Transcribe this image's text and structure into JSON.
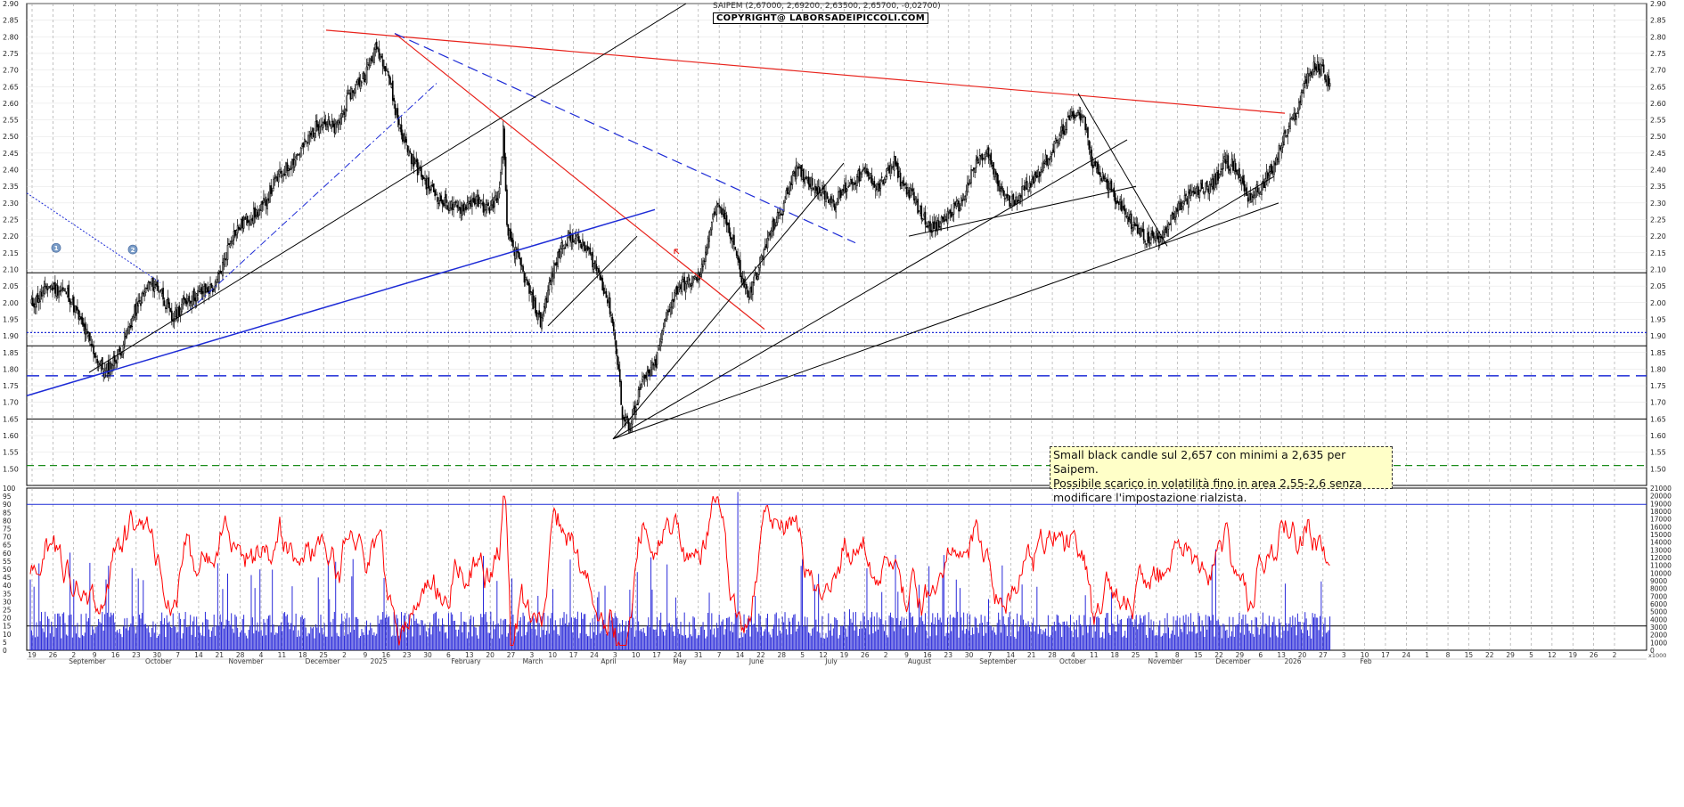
{
  "header": {
    "title": "SAIPEM (2,67000, 2,69200, 2,63500, 2,65700, -0,02700)",
    "copyright": "COPYRIGHT@ LABORSADEIPICCOLI.COM"
  },
  "annotation": {
    "line1": "Small black candle sul 2,657 con minimi a 2,635 per Saipem.",
    "line2": "Possibile scarico in volatilità fino in area 2,55-2,6 senza",
    "line3": "modificare l'impostazione rialzista."
  },
  "markers": [
    "1",
    "2"
  ],
  "colors": {
    "price": "#000000",
    "trend_red": "#e8231c",
    "trend_blue": "#1d2bd6",
    "osc": "#ff0000",
    "volume": "#2a2ad9",
    "grid": "#9a9a9a",
    "support_green": "#1a8c1a"
  },
  "chart_data": [
    {
      "type": "candlestick",
      "title": "SAIPEM",
      "ylim": [
        1.45,
        2.9
      ],
      "y_ticks": [
        "2.90",
        "2.85",
        "2.80",
        "2.75",
        "2.70",
        "2.65",
        "2.60",
        "2.55",
        "2.50",
        "2.45",
        "2.40",
        "2.35",
        "2.30",
        "2.25",
        "2.20",
        "2.15",
        "2.10",
        "2.05",
        "2.00",
        "1.95",
        "1.90",
        "1.85",
        "1.80",
        "1.75",
        "1.70",
        "1.65",
        "1.60",
        "1.55",
        "1.50"
      ],
      "horizontal_levels": [
        2.09,
        1.91,
        1.87,
        1.78,
        1.65,
        1.51
      ],
      "close_path": [
        [
          0,
          1.99
        ],
        [
          5,
          2.05
        ],
        [
          10,
          2.03
        ],
        [
          14,
          1.93
        ],
        [
          18,
          1.83
        ],
        [
          20,
          1.79
        ],
        [
          24,
          1.85
        ],
        [
          28,
          1.97
        ],
        [
          32,
          2.06
        ],
        [
          35,
          2.04
        ],
        [
          38,
          1.95
        ],
        [
          42,
          2.01
        ],
        [
          46,
          2.03
        ],
        [
          50,
          2.05
        ],
        [
          54,
          2.2
        ],
        [
          58,
          2.25
        ],
        [
          62,
          2.28
        ],
        [
          66,
          2.37
        ],
        [
          70,
          2.42
        ],
        [
          74,
          2.48
        ],
        [
          78,
          2.55
        ],
        [
          82,
          2.52
        ],
        [
          86,
          2.63
        ],
        [
          90,
          2.69
        ],
        [
          93,
          2.77
        ],
        [
          96,
          2.7
        ],
        [
          98,
          2.58
        ],
        [
          100,
          2.5
        ],
        [
          103,
          2.42
        ],
        [
          107,
          2.35
        ],
        [
          111,
          2.3
        ],
        [
          115,
          2.28
        ],
        [
          119,
          2.31
        ],
        [
          123,
          2.28
        ],
        [
          126,
          2.33
        ],
        [
          127,
          2.52
        ],
        [
          128,
          2.22
        ],
        [
          132,
          2.1
        ],
        [
          135,
          2.0
        ],
        [
          137,
          1.94
        ],
        [
          140,
          2.08
        ],
        [
          143,
          2.18
        ],
        [
          146,
          2.2
        ],
        [
          150,
          2.15
        ],
        [
          153,
          2.08
        ],
        [
          156,
          1.97
        ],
        [
          158,
          1.8
        ],
        [
          159,
          1.65
        ],
        [
          161,
          1.63
        ],
        [
          164,
          1.75
        ],
        [
          168,
          1.82
        ],
        [
          171,
          1.97
        ],
        [
          174,
          2.05
        ],
        [
          177,
          2.06
        ],
        [
          180,
          2.08
        ],
        [
          182,
          2.2
        ],
        [
          184,
          2.28
        ],
        [
          186,
          2.27
        ],
        [
          189,
          2.18
        ],
        [
          191,
          2.07
        ],
        [
          193,
          2.02
        ],
        [
          196,
          2.12
        ],
        [
          199,
          2.22
        ],
        [
          202,
          2.28
        ],
        [
          205,
          2.4
        ],
        [
          208,
          2.38
        ],
        [
          212,
          2.34
        ],
        [
          216,
          2.3
        ],
        [
          220,
          2.36
        ],
        [
          224,
          2.39
        ],
        [
          228,
          2.35
        ],
        [
          232,
          2.42
        ],
        [
          234,
          2.36
        ],
        [
          237,
          2.32
        ],
        [
          240,
          2.25
        ],
        [
          243,
          2.22
        ],
        [
          246,
          2.26
        ],
        [
          250,
          2.3
        ],
        [
          254,
          2.42
        ],
        [
          257,
          2.45
        ],
        [
          260,
          2.35
        ],
        [
          263,
          2.3
        ],
        [
          266,
          2.33
        ],
        [
          270,
          2.38
        ],
        [
          274,
          2.45
        ],
        [
          278,
          2.53
        ],
        [
          281,
          2.58
        ],
        [
          283,
          2.55
        ],
        [
          285,
          2.43
        ],
        [
          288,
          2.38
        ],
        [
          291,
          2.32
        ],
        [
          294,
          2.27
        ],
        [
          297,
          2.22
        ],
        [
          300,
          2.19
        ],
        [
          303,
          2.2
        ],
        [
          306,
          2.24
        ],
        [
          310,
          2.31
        ],
        [
          314,
          2.34
        ],
        [
          318,
          2.36
        ],
        [
          321,
          2.43
        ],
        [
          324,
          2.4
        ],
        [
          327,
          2.32
        ],
        [
          330,
          2.34
        ],
        [
          334,
          2.41
        ],
        [
          336,
          2.48
        ],
        [
          339,
          2.55
        ],
        [
          341,
          2.6
        ],
        [
          342,
          2.67
        ],
        [
          345,
          2.71
        ],
        [
          347,
          2.7
        ],
        [
          349,
          2.66
        ]
      ]
    },
    {
      "type": "line",
      "name": "oscillator",
      "ylim": [
        0,
        100
      ],
      "y_ticks": [
        "100",
        "95",
        "90",
        "85",
        "80",
        "75",
        "70",
        "65",
        "60",
        "55",
        "50",
        "45",
        "40",
        "35",
        "30",
        "25",
        "20",
        "15",
        "10",
        "5",
        "0"
      ],
      "levels": [
        90,
        15
      ]
    },
    {
      "type": "bar",
      "name": "volume",
      "ylim": [
        0,
        21000
      ],
      "y_ticks": [
        "21000",
        "20000",
        "19000",
        "18000",
        "17000",
        "16000",
        "15000",
        "14000",
        "13000",
        "12000",
        "11000",
        "10000",
        "9000",
        "8000",
        "7000",
        "6000",
        "5000",
        "4000",
        "3000",
        "2000",
        "1000",
        "0"
      ]
    }
  ],
  "x_axis": {
    "days": [
      "19",
      "26",
      "2",
      "9",
      "16",
      "23",
      "30",
      "7",
      "14",
      "21",
      "28",
      "4",
      "11",
      "18",
      "25",
      "2",
      "9",
      "16",
      "23",
      "30",
      "6",
      "13",
      "20",
      "27",
      "3",
      "10",
      "17",
      "24",
      "3",
      "10",
      "17",
      "24",
      "31",
      "7",
      "14",
      "22",
      "28",
      "5",
      "12",
      "19",
      "26",
      "2",
      "9",
      "16",
      "23",
      "30",
      "7",
      "14",
      "21",
      "28",
      "4",
      "11",
      "18",
      "25",
      "1",
      "8",
      "15",
      "22",
      "29",
      "6",
      "13",
      "20",
      "27",
      "3",
      "10",
      "17",
      "24",
      "1",
      "8",
      "15",
      "22",
      "29",
      "5",
      "12",
      "19",
      "26",
      "2"
    ],
    "months": [
      "September",
      "October",
      "November",
      "December",
      "2025",
      "February",
      "March",
      "April",
      "May",
      "June",
      "July",
      "August",
      "September",
      "October",
      "November",
      "December",
      "2026",
      "Feb"
    ]
  },
  "footer_label": "x1000"
}
